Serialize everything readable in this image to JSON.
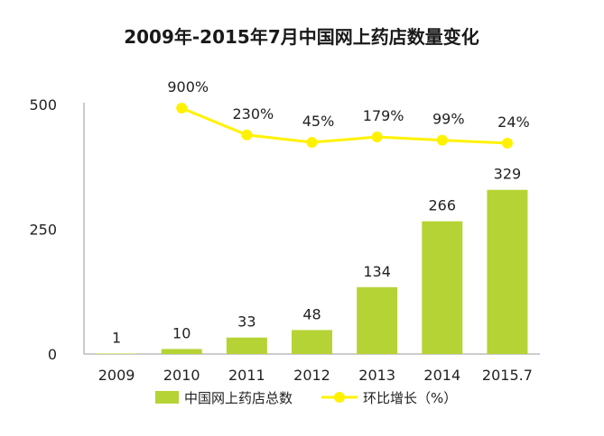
{
  "chart_data": {
    "type": "bar",
    "title": "2009年-2015年7月中国网上药店数量变化",
    "categories": [
      "2009",
      "2010",
      "2011",
      "2012",
      "2013",
      "2014",
      "2015.7"
    ],
    "series": [
      {
        "name": "中国网上药店总数",
        "type": "bar",
        "color": "#B5D334",
        "values": [
          1,
          10,
          33,
          48,
          134,
          266,
          329
        ],
        "labels": [
          "1",
          "10",
          "33",
          "48",
          "134",
          "266",
          "329"
        ]
      },
      {
        "name": "环比增长（%）",
        "type": "line",
        "color": "#FFF200",
        "values": [
          null,
          900,
          230,
          45,
          179,
          99,
          24
        ],
        "labels": [
          "",
          "900%",
          "230%",
          "45%",
          "179%",
          "99%",
          "24%"
        ]
      }
    ],
    "yticks": [
      "0",
      "250",
      "500"
    ],
    "ylim": [
      0,
      500
    ],
    "legend": "bottom",
    "grid": false
  }
}
